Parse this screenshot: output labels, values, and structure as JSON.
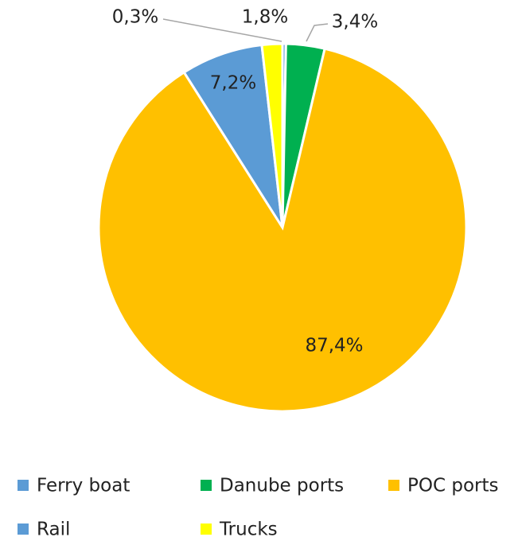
{
  "chart_data": {
    "type": "pie",
    "categories": [
      "Ferry boat",
      "Danube ports",
      "POC ports",
      "Rail",
      "Trucks"
    ],
    "values": [
      0.3,
      3.4,
      87.4,
      7.2,
      1.8
    ],
    "value_labels": [
      "0,3%",
      "3,4%",
      "87,4%",
      "7,2%",
      "1,8%"
    ],
    "colors": [
      "#5b9bd5",
      "#00b050",
      "#ffc000",
      "#5b9bd5",
      "#ffff00"
    ],
    "legend": "bottom"
  }
}
